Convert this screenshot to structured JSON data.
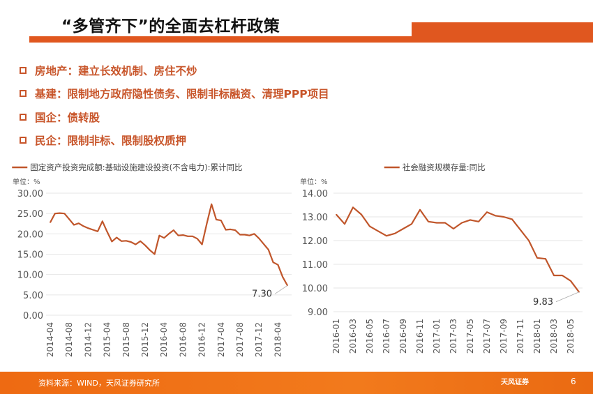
{
  "title": "“多管齐下”的全面去杠杆政策",
  "bullets": [
    "房地产：建立长效机制、房住不炒",
    "基建：限制地方政府隐性债务、限制非标融资、清理PPP项目",
    "国企：债转股",
    "民企：限制非标、限制股权质押"
  ],
  "footer": {
    "source": "资料来源：WIND，天风证券研究所",
    "logo": "天风证券",
    "page": "6"
  },
  "colors": {
    "accent": "#e0571f",
    "line": "#c0562b",
    "text": "#c8552a"
  },
  "chart_data": [
    {
      "type": "line",
      "legend": "固定资产投资完成额:基础设施建设投资(不含电力):累计同比",
      "unit_label": "单位：%",
      "ylim": [
        0,
        30
      ],
      "yticks": [
        "0.00",
        "5.00",
        "10.00",
        "15.00",
        "20.00",
        "25.00",
        "30.00"
      ],
      "start": "2014-04",
      "xtick_labels": [
        "2014-04",
        "2014-08",
        "2014-12",
        "2015-04",
        "2015-08",
        "2015-12",
        "2016-04",
        "2016-08",
        "2016-12",
        "2017-04",
        "2017-08",
        "2017-12",
        "2018-04"
      ],
      "values": [
        22.8,
        25.0,
        25.1,
        25.0,
        23.6,
        22.2,
        22.6,
        21.9,
        21.4,
        21.0,
        20.6,
        23.1,
        20.5,
        18.1,
        19.1,
        18.2,
        18.3,
        18.0,
        17.4,
        18.2,
        17.2,
        16.0,
        15.0,
        19.6,
        19.0,
        20.0,
        20.9,
        19.6,
        19.7,
        19.4,
        19.4,
        18.8,
        17.4,
        22.5,
        27.3,
        23.5,
        23.3,
        21.0,
        21.1,
        20.9,
        19.8,
        19.8,
        19.6,
        20.0,
        18.9,
        17.5,
        16.1,
        13.0,
        12.4,
        9.4,
        7.3
      ],
      "annotation": "7.30",
      "grid": true
    },
    {
      "type": "line",
      "legend": "社会融资规模存量:同比",
      "unit_label": "单位：%",
      "ylim": [
        9,
        14
      ],
      "yticks": [
        "9.00",
        "10.00",
        "11.00",
        "12.00",
        "13.00",
        "14.00"
      ],
      "start": "2016-01",
      "xtick_labels": [
        "2016-01",
        "2016-03",
        "2016-05",
        "2016-07",
        "2016-09",
        "2016-11",
        "2017-01",
        "2017-03",
        "2017-05",
        "2017-07",
        "2017-09",
        "2017-11",
        "2018-01",
        "2018-03",
        "2018-05"
      ],
      "values": [
        13.1,
        12.7,
        13.4,
        13.1,
        12.6,
        12.4,
        12.2,
        12.3,
        12.5,
        12.7,
        13.3,
        12.8,
        12.75,
        12.75,
        12.5,
        12.75,
        12.87,
        12.8,
        13.2,
        13.05,
        13.0,
        12.9,
        12.45,
        12.0,
        11.27,
        11.23,
        10.53,
        10.53,
        10.3,
        9.83
      ],
      "annotation": "9.83",
      "grid": true
    }
  ]
}
